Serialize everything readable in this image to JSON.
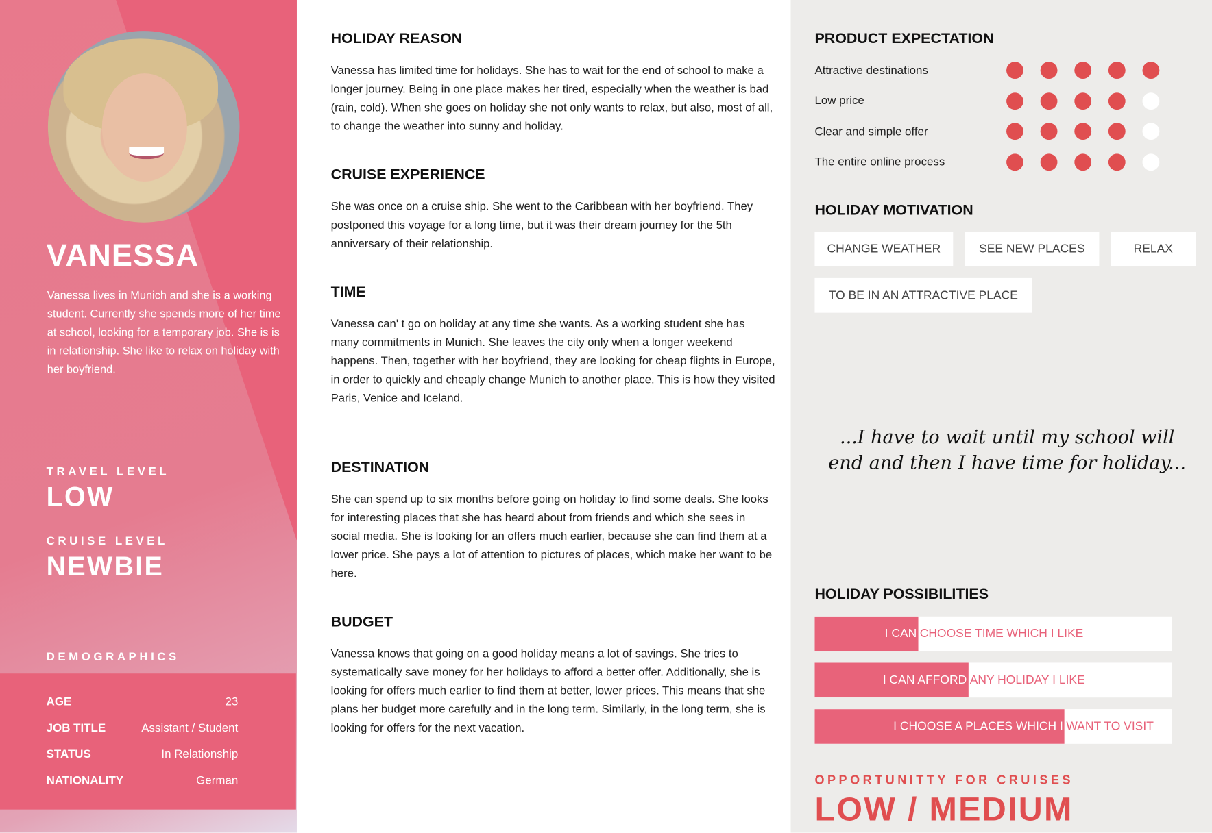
{
  "persona": {
    "name": "VANESSA",
    "bio": "Vanessa lives in Munich and she is a working student. Currently she spends more of her time at school, looking for a temporary job. She is is in relationship. She like to relax on holiday with her boyfriend.",
    "travel_level_label": "TRAVEL LEVEL",
    "travel_level": "LOW",
    "cruise_level_label": "CRUISE LEVEL",
    "cruise_level": "NEWBIE",
    "demographics_label": "DEMOGRAPHICS",
    "demographics": [
      {
        "label": "AGE",
        "value": "23"
      },
      {
        "label": "JOB TITLE",
        "value": "Assistant / Student"
      },
      {
        "label": "STATUS",
        "value": "In Relationship"
      },
      {
        "label": "NATIONALITY",
        "value": "German"
      }
    ]
  },
  "sections": [
    {
      "title": "HOLIDAY REASON",
      "text": "Vanessa has limited time for holidays. She has to wait for the end of school to make a longer journey. Being in one place makes her tired, especially when the weather is bad (rain, cold). When she goes on holiday she not only wants to relax, but also, most of all, to change the weather into sunny and holiday."
    },
    {
      "title": "CRUISE EXPERIENCE",
      "text": "She was once on a cruise ship. She went to the Caribbean with her boyfriend. They postponed this voyage for a long time, but it was their dream journey for the 5th anniversary of their relationship."
    },
    {
      "title": "TIME",
      "text": "Vanessa can' t go on holiday at any time she wants. As a working student she has many commitments in Munich. She leaves the city only when a longer weekend happens. Then, together with her boyfriend, they are looking for cheap flights in Europe, in order to quickly and cheaply change Munich to another place. This is how they visited Paris, Venice and Iceland."
    },
    {
      "title": "DESTINATION",
      "text": "She can spend up to six months before going on holiday to find some deals. She looks for interesting places that she has heard about from friends and which she sees in social media. She is looking for an offers much earlier, because she can find them at a lower price. She pays a lot of attention to pictures of places, which make her want to be here."
    },
    {
      "title": "BUDGET",
      "text": "Vanessa knows that going on a good holiday means a lot of savings. She tries to systematically save money for her holidays to afford a better offer. Additionally, she is looking for offers much earlier to find them at better, lower prices. This means that she plans her budget more carefully and in the long term. Similarly, in the long term, she is looking for offers for the next vacation."
    }
  ],
  "product_expectation": {
    "title": "PRODUCT EXPECTATION",
    "max": 5,
    "items": [
      {
        "label": "Attractive destinations",
        "rating": 5
      },
      {
        "label": "Low price",
        "rating": 4
      },
      {
        "label": "Clear and simple offer",
        "rating": 4
      },
      {
        "label": "The entire online process",
        "rating": 4
      }
    ]
  },
  "holiday_motivation": {
    "title": "HOLIDAY MOTIVATION",
    "tags": [
      "CHANGE WEATHER",
      "SEE NEW PLACES",
      "RELAX",
      "TO BE IN AN ATTRACTIVE PLACE"
    ]
  },
  "quote": "...I have to wait until my school will end and then I have time for holiday...",
  "holiday_possibilities": {
    "title": "HOLIDAY POSSIBILITIES",
    "items": [
      {
        "text": "I CAN CHOOSE TIME WHICH I LIKE",
        "level_percent": 29
      },
      {
        "text": "I CAN AFFORD ANY HOLIDAY I LIKE",
        "level_percent": 43
      },
      {
        "text": "I CHOOSE A PLACES WHICH I WANT TO VISIT",
        "level_percent": 70
      }
    ]
  },
  "opportunity": {
    "label": "OPPORTUNITTY FOR CRUISES",
    "value": "LOW / MEDIUM"
  },
  "colors": {
    "accent": "#e8627a",
    "dot": "#e04e50",
    "right_bg": "#edecea"
  }
}
